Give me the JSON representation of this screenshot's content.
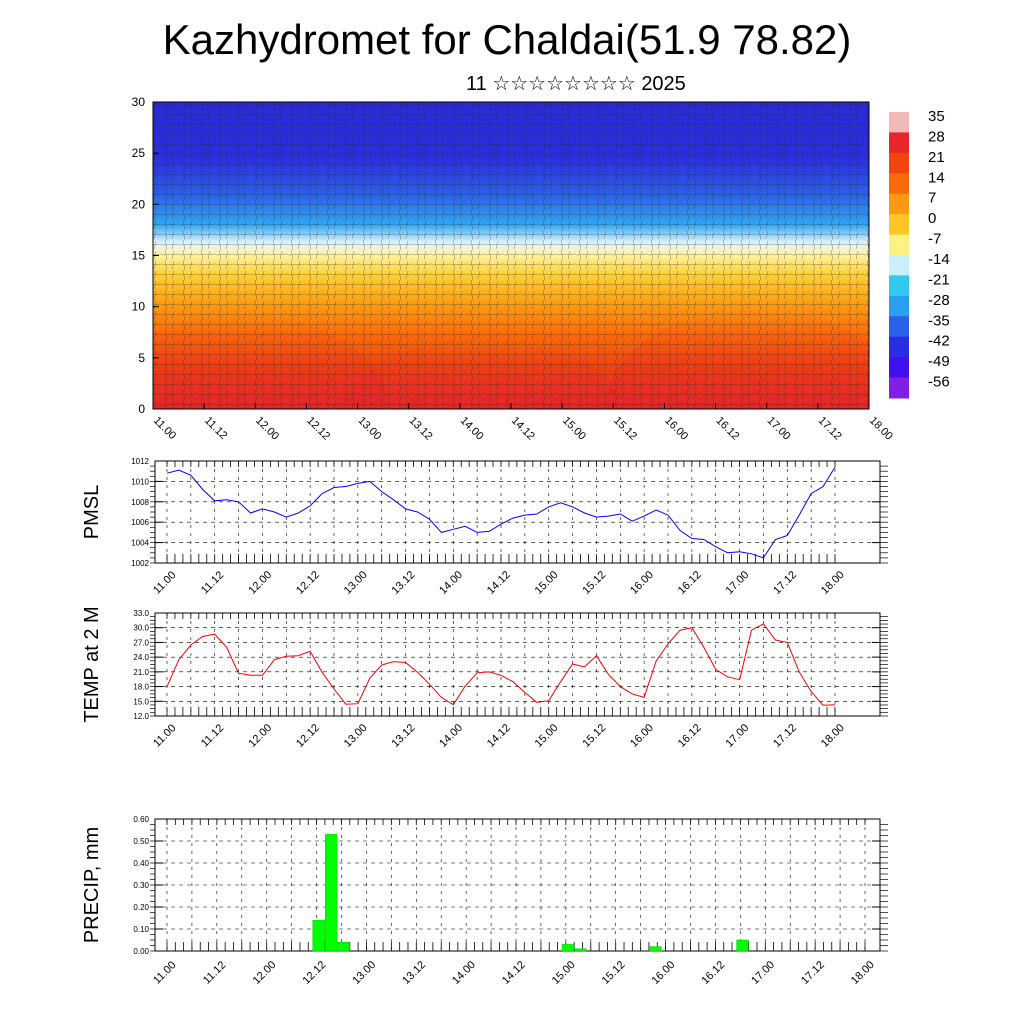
{
  "title": "Kazhydromet for Chaldai(51.9 78.82)",
  "subtitle": "11 ☆☆☆☆☆☆☆☆ 2025",
  "time_labels": [
    "11.00",
    "11.12",
    "12.00",
    "12.12",
    "13.00",
    "13.12",
    "14.00",
    "14.12",
    "15.00",
    "15.12",
    "16.00",
    "16.12",
    "17.00",
    "17.12",
    "18.00"
  ],
  "colorbar": {
    "labels": [
      "35",
      "28",
      "21",
      "14",
      "7",
      "0",
      "-7",
      "-14",
      "-21",
      "-28",
      "-35",
      "-42",
      "-49",
      "-56"
    ],
    "colors": [
      "#f2b9bb",
      "#e8262a",
      "#f0450f",
      "#fb6a0a",
      "#fc9b12",
      "#fdc826",
      "#fff284",
      "#c9f0fb",
      "#32c8f0",
      "#2a9ef0",
      "#2b60e8",
      "#2b2ee0",
      "#4010f0",
      "#8020e6"
    ]
  },
  "chart_data": [
    {
      "type": "heatmap",
      "description_colorscale": "temperature cross-section with wind barbs",
      "xlabel": "",
      "ylabel": "",
      "ylim": [
        0,
        30
      ],
      "yticks": [
        "0",
        "5",
        "10",
        "15",
        "20",
        "25",
        "30"
      ],
      "categories": [
        "11.00",
        "11.12",
        "12.00",
        "12.12",
        "13.00",
        "13.12",
        "14.00",
        "14.12",
        "15.00",
        "15.12",
        "16.00",
        "16.12",
        "17.00",
        "17.12",
        "18.00"
      ]
    },
    {
      "type": "line",
      "ylabel": "PMSL",
      "ylim": [
        1002,
        1012
      ],
      "yticks": [
        "1002",
        "1004",
        "1006",
        "1008",
        "1010",
        "1012"
      ],
      "color": "#0000ff",
      "x": [
        0,
        1,
        2,
        3,
        4,
        5,
        6,
        7,
        8,
        9,
        10,
        11,
        12,
        13,
        14,
        15,
        16,
        17,
        18,
        19,
        20,
        21,
        22,
        23,
        24,
        25,
        26,
        27,
        28,
        29,
        30,
        31,
        32,
        33,
        34,
        35,
        36,
        37,
        38,
        39,
        40,
        41,
        42,
        43,
        44,
        45,
        46,
        47,
        48,
        49,
        50,
        51,
        52,
        53,
        54,
        55,
        56
      ],
      "values": [
        1010.8,
        1011.1,
        1010.6,
        1009.2,
        1008.1,
        1008.2,
        1008.0,
        1006.9,
        1007.3,
        1007.0,
        1006.5,
        1006.9,
        1007.6,
        1008.8,
        1009.4,
        1009.5,
        1009.8,
        1010.0,
        1009.0,
        1008.2,
        1007.3,
        1007.0,
        1006.3,
        1005.0,
        1005.3,
        1005.6,
        1005.0,
        1005.1,
        1005.8,
        1006.4,
        1006.7,
        1006.8,
        1007.5,
        1007.9,
        1007.5,
        1006.9,
        1006.5,
        1006.6,
        1006.8,
        1006.1,
        1006.6,
        1007.2,
        1006.7,
        1005.2,
        1004.4,
        1004.3,
        1003.6,
        1003.0,
        1003.1,
        1002.9,
        1002.5,
        1004.3,
        1004.7,
        1006.7,
        1008.8,
        1009.5,
        1011.4
      ]
    },
    {
      "type": "line",
      "ylabel": "TEMP at 2 M",
      "ylim": [
        12,
        33
      ],
      "yticks": [
        "12.0",
        "15.0",
        "18.0",
        "21.0",
        "24.0",
        "27.0",
        "30.0",
        "33.0"
      ],
      "color": "#ff0000",
      "x": [
        0,
        1,
        2,
        3,
        4,
        5,
        6,
        7,
        8,
        9,
        10,
        11,
        12,
        13,
        14,
        15,
        16,
        17,
        18,
        19,
        20,
        21,
        22,
        23,
        24,
        25,
        26,
        27,
        28,
        29,
        30,
        31,
        32,
        33,
        34,
        35,
        36,
        37,
        38,
        39,
        40,
        41,
        42,
        43,
        44,
        45,
        46,
        47,
        48,
        49,
        50,
        51,
        52,
        53,
        54,
        55,
        56
      ],
      "values": [
        18.0,
        23.5,
        26.5,
        28.2,
        28.7,
        26.0,
        20.7,
        20.3,
        20.3,
        23.5,
        24.2,
        24.3,
        25.2,
        20.9,
        17.5,
        14.4,
        14.5,
        19.7,
        22.4,
        23.1,
        22.9,
        20.9,
        18.5,
        15.8,
        14.3,
        18.1,
        20.8,
        21.0,
        20.3,
        19.0,
        16.8,
        14.8,
        15.1,
        19.0,
        22.6,
        22.0,
        24.3,
        20.5,
        18.0,
        16.5,
        15.8,
        23.2,
        26.7,
        29.5,
        30.0,
        26.0,
        21.5,
        20.0,
        19.4,
        29.5,
        30.8,
        27.5,
        27.0,
        21.0,
        17.0,
        14.2,
        14.3
      ]
    },
    {
      "type": "bar",
      "ylabel": "PRECIP, mm",
      "ylim": [
        0,
        0.6
      ],
      "yticks": [
        "0.00",
        "0.10",
        "0.20",
        "0.30",
        "0.40",
        "0.50",
        "0.60"
      ],
      "color": "#00ff00",
      "x": [
        10,
        11,
        12,
        30,
        31,
        37,
        44
      ],
      "values": [
        0.14,
        0.53,
        0.04,
        0.03,
        0.01,
        0.02,
        0.05
      ]
    }
  ]
}
